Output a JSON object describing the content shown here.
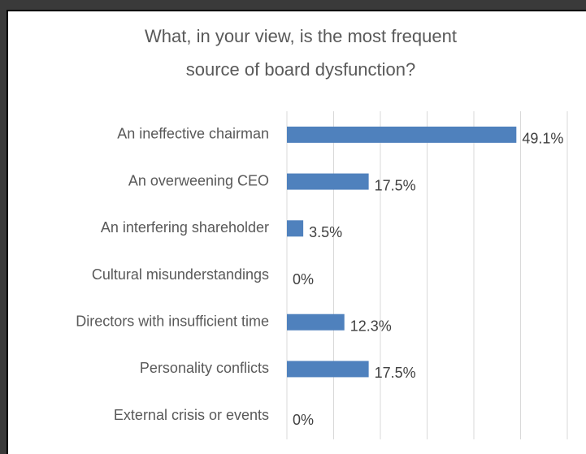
{
  "chart_data": {
    "type": "bar",
    "orientation": "horizontal",
    "title": [
      "What, in your view, is the most frequent",
      "source of board dysfunction?"
    ],
    "categories": [
      "An ineffective chairman",
      "An overweening CEO",
      "An interfering shareholder",
      "Cultural misunderstandings",
      "Directors with insufficient time",
      "Personality conflicts",
      "External crisis or events"
    ],
    "values": [
      49.1,
      17.5,
      3.5,
      0,
      12.3,
      17.5,
      0
    ],
    "value_labels": [
      "49.1%",
      "17.5%",
      "3.5%",
      "0%",
      "12.3%",
      "17.5%",
      "0%"
    ],
    "color": "#4f81bd",
    "xlim": [
      0,
      60
    ],
    "xticks": [
      0,
      10,
      20,
      30,
      40,
      50,
      60
    ],
    "grid": true
  }
}
